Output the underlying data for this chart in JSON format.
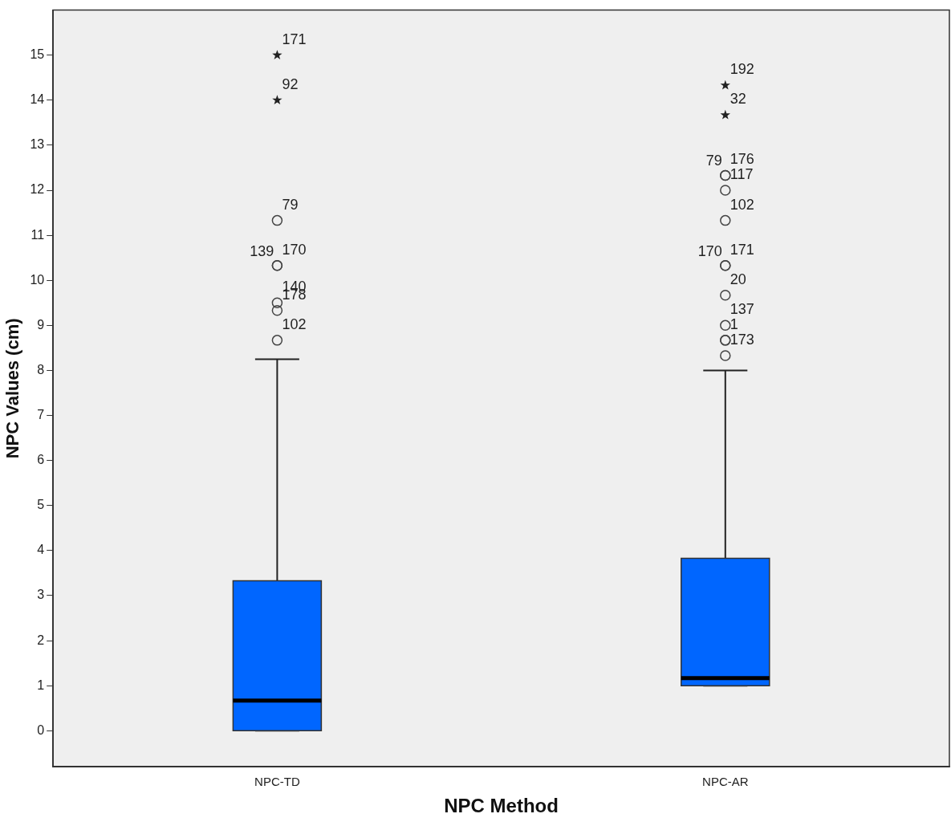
{
  "chart_data": {
    "type": "box",
    "xlabel": "NPC Method",
    "ylabel": "NPC Values (cm)",
    "categories": [
      "NPC-TD",
      "NPC-AR"
    ],
    "ylim": [
      -0.8,
      16
    ],
    "yticks": [
      0,
      1,
      2,
      3,
      4,
      5,
      6,
      7,
      8,
      9,
      10,
      11,
      12,
      13,
      14,
      15
    ],
    "grid": false,
    "series": [
      {
        "color": "#0066ff",
        "boxes": [
          {
            "low": 0,
            "q1": 0,
            "median": 0.67,
            "q3": 3.33,
            "high": 8.25
          },
          {
            "low": 1,
            "q1": 1,
            "median": 1.17,
            "q3": 3.83,
            "high": 8
          }
        ]
      },
      {
        "type": "scatter",
        "marker": "circle",
        "color": "#444444",
        "x": [
          "NPC-TD",
          "NPC-TD",
          "NPC-TD",
          "NPC-TD",
          "NPC-TD",
          "NPC-TD",
          "NPC-AR",
          "NPC-AR",
          "NPC-AR",
          "NPC-AR",
          "NPC-AR",
          "NPC-AR",
          "NPC-AR",
          "NPC-AR",
          "NPC-AR",
          "NPC-AR",
          "NPC-AR"
        ],
        "values": [
          8.67,
          9.33,
          9.5,
          10.33,
          10.33,
          11.33,
          8.33,
          8.67,
          8.67,
          9,
          9.67,
          10.33,
          10.33,
          11.33,
          12,
          12.33,
          12.33
        ]
      },
      {
        "type": "scatter",
        "marker": "star",
        "color": "#222222",
        "x": [
          "NPC-TD",
          "NPC-TD",
          "NPC-AR",
          "NPC-AR"
        ],
        "values": [
          14,
          15,
          13.67,
          14.33
        ]
      }
    ],
    "annotations": [
      {
        "text": "171",
        "x": "NPC-TD",
        "y": 15
      },
      {
        "text": "92",
        "x": "NPC-TD",
        "y": 14
      },
      {
        "text": "79",
        "x": "NPC-TD",
        "y": 11.33
      },
      {
        "text": "139",
        "x": "NPC-TD",
        "y": 10.33
      },
      {
        "text": "170",
        "x": "NPC-TD",
        "y": 10.33
      },
      {
        "text": "140",
        "x": "NPC-TD",
        "y": 9.5
      },
      {
        "text": "178",
        "x": "NPC-TD",
        "y": 9.33
      },
      {
        "text": "102",
        "x": "NPC-TD",
        "y": 8.67
      },
      {
        "text": "192",
        "x": "NPC-AR",
        "y": 14.33
      },
      {
        "text": "32",
        "x": "NPC-AR",
        "y": 13.67
      },
      {
        "text": "79",
        "x": "NPC-AR",
        "y": 12.33
      },
      {
        "text": "176",
        "x": "NPC-AR",
        "y": 12.33
      },
      {
        "text": "117",
        "x": "NPC-AR",
        "y": 12
      },
      {
        "text": "102",
        "x": "NPC-AR",
        "y": 11.33
      },
      {
        "text": "170",
        "x": "NPC-AR",
        "y": 10.33
      },
      {
        "text": "171",
        "x": "NPC-AR",
        "y": 10.33
      },
      {
        "text": "20",
        "x": "NPC-AR",
        "y": 9.67
      },
      {
        "text": "137",
        "x": "NPC-AR",
        "y": 9
      },
      {
        "text": "1",
        "x": "NPC-AR",
        "y": 8.67
      },
      {
        "text": "173",
        "x": "NPC-AR",
        "y": 8.33
      }
    ]
  }
}
